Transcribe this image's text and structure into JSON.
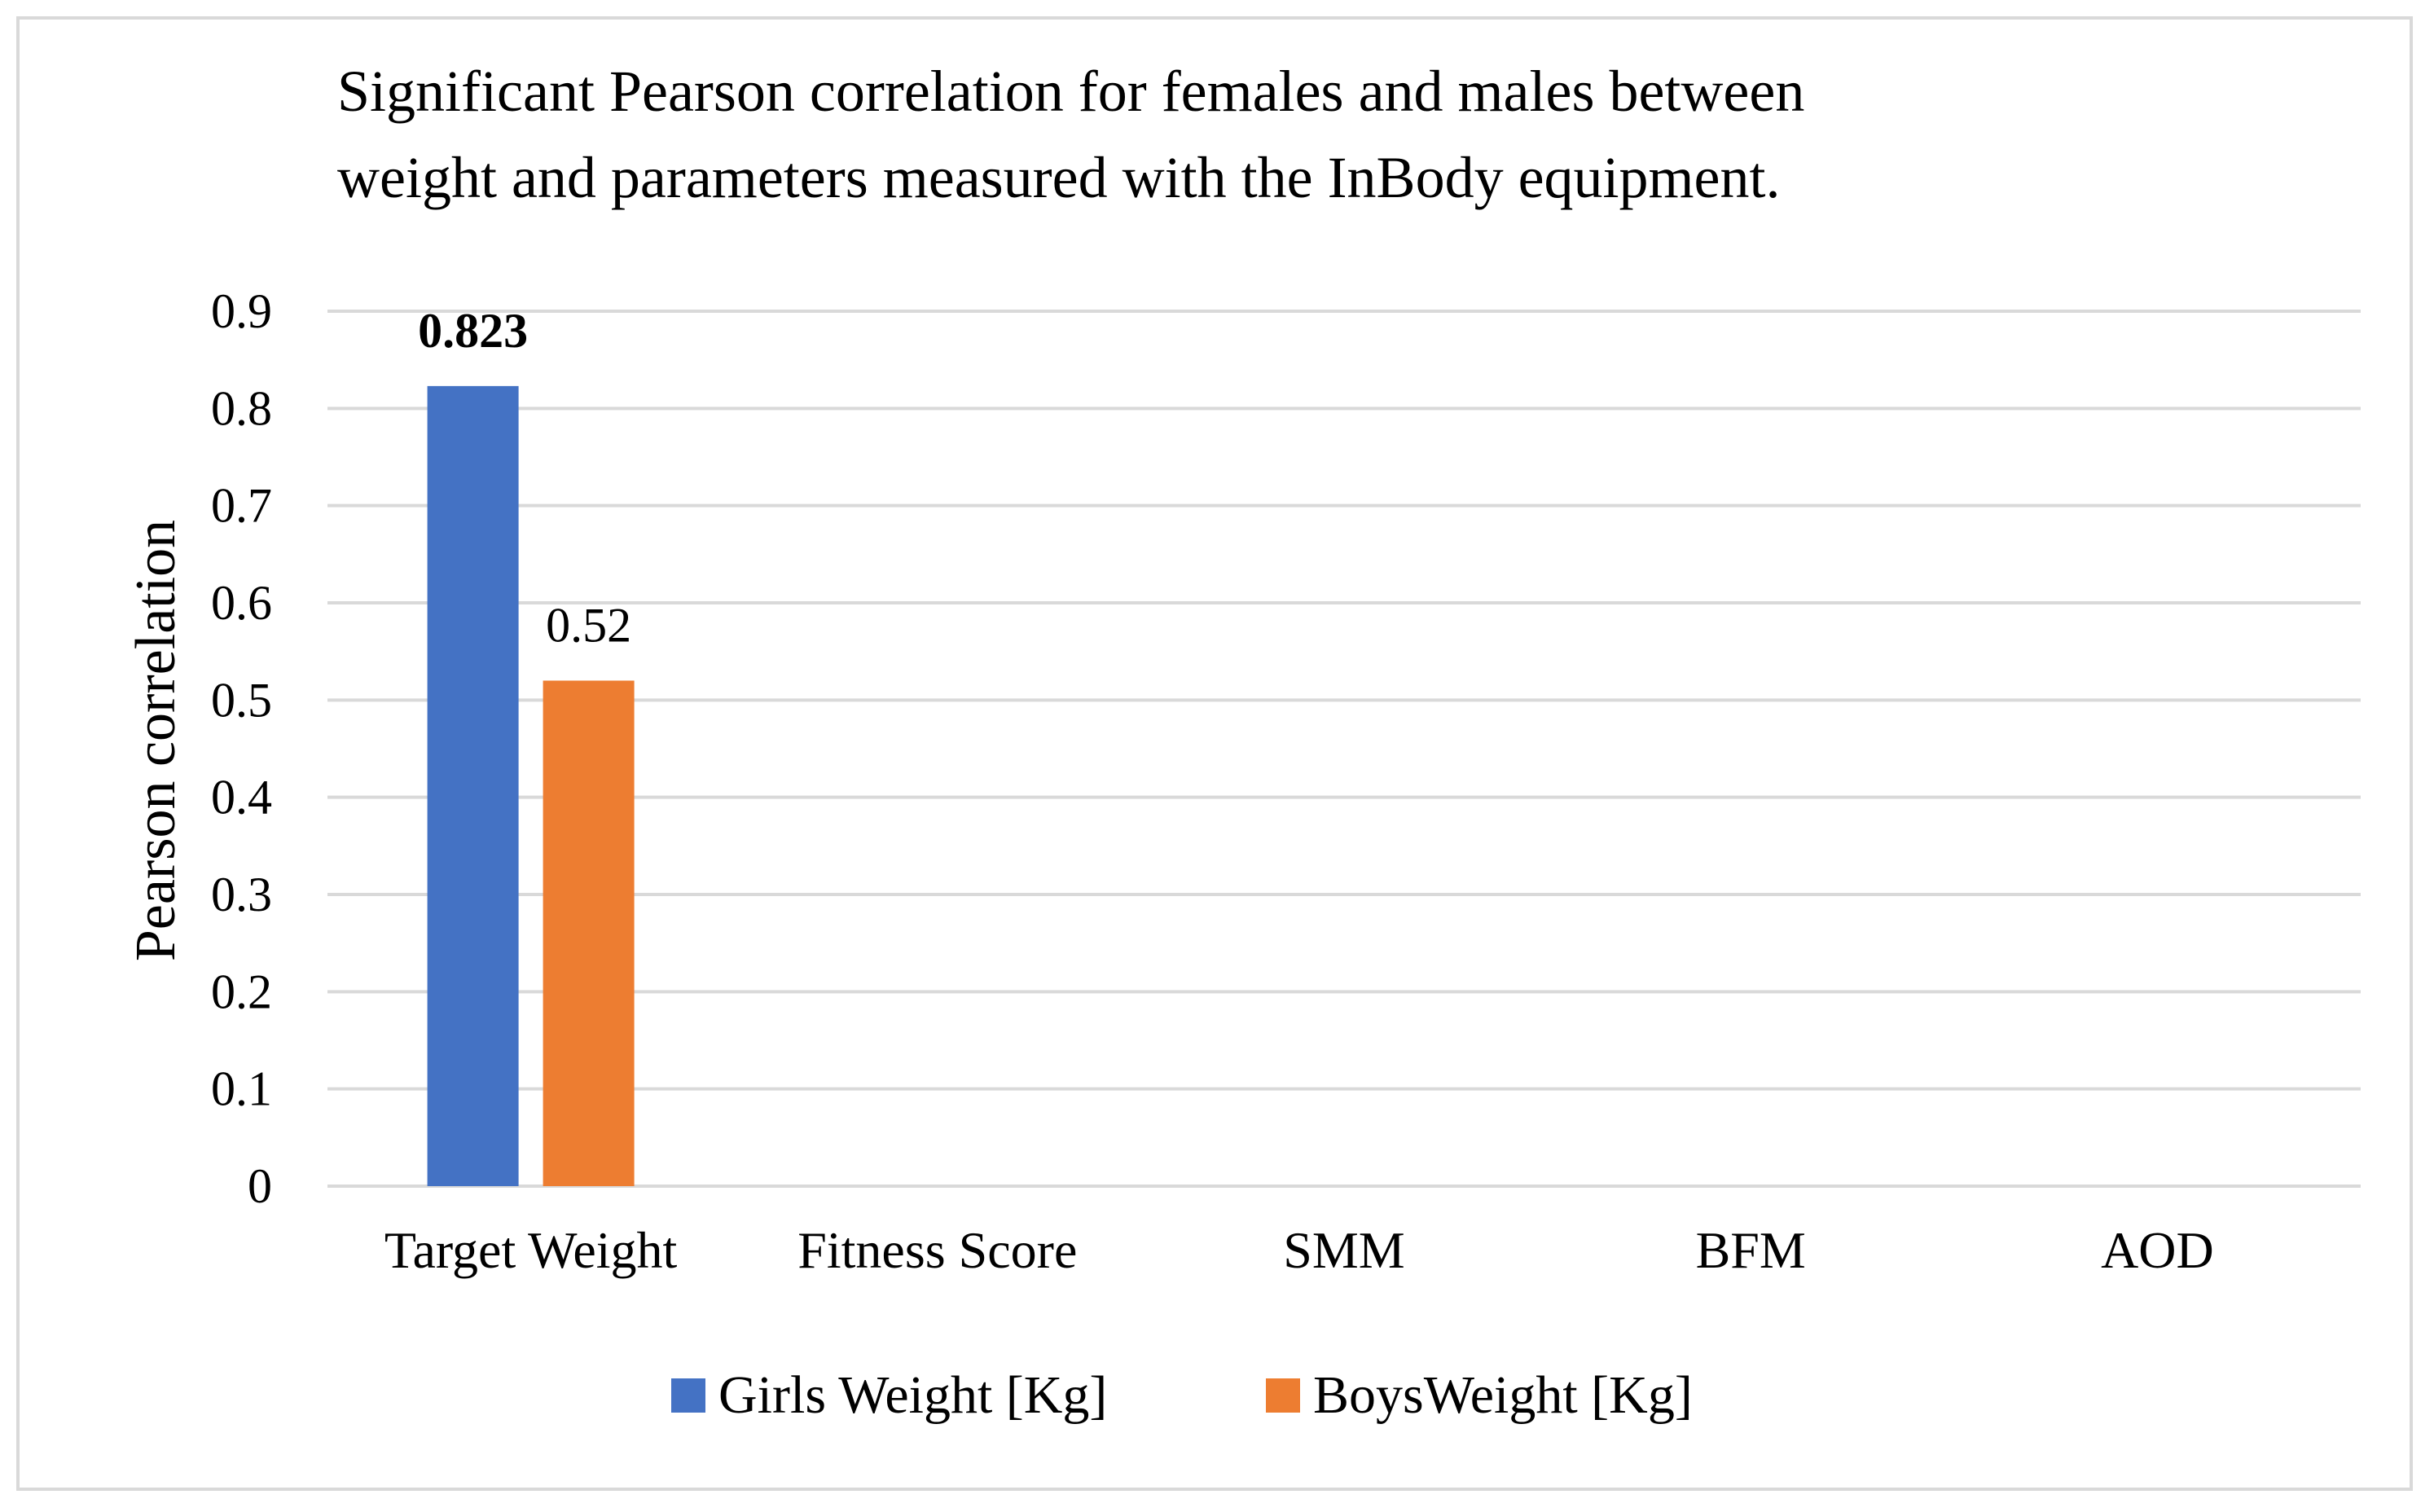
{
  "chart_data": {
    "type": "bar",
    "title_lines": [
      "Significant Pearson correlation for females and males between",
      "weight and parameters measured with the InBody equipment."
    ],
    "xlabel": "",
    "ylabel": "Pearson correlation",
    "ylim": [
      0,
      0.9
    ],
    "yticks": [
      "0",
      "0.1",
      "0.2",
      "0.3",
      "0.4",
      "0.5",
      "0.6",
      "0.7",
      "0.8",
      "0.9"
    ],
    "grid": true,
    "legend_position": "bottom",
    "categories": [
      "Target Weight",
      "Fitness Score",
      "SMM",
      "BFM",
      "AOD"
    ],
    "series": [
      {
        "name": "Girls Weight [Kg]",
        "color": "#4472c4",
        "values": [
          0.823,
          null,
          null,
          null,
          null
        ],
        "labels": [
          "0.823",
          null,
          null,
          null,
          null
        ],
        "label_bold": true
      },
      {
        "name": "BoysWeight [Kg]",
        "color": "#ed7d31",
        "values": [
          0.52,
          null,
          null,
          null,
          null
        ],
        "labels": [
          "0.52",
          null,
          null,
          null,
          null
        ],
        "label_bold": false
      }
    ],
    "colors": {
      "grid": "#d9d9d9",
      "frame": "#d9d9d9"
    }
  }
}
